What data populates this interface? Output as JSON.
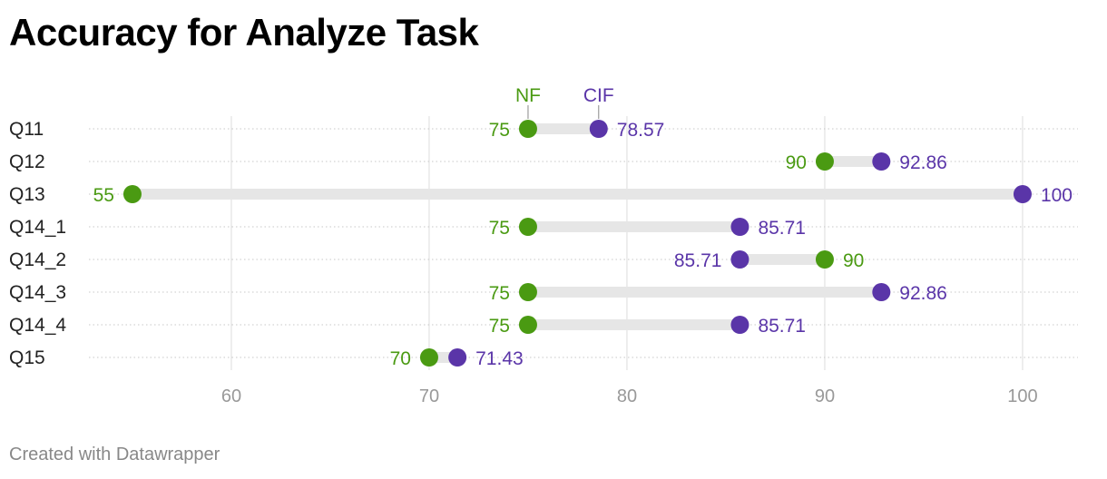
{
  "title": "Accuracy for Analyze Task",
  "credit": "Created with Datawrapper",
  "colors": {
    "NF": "#4a9a12",
    "CIF": "#5a35a8",
    "range_bar": "#e6e6e6",
    "grid": "#dddddd",
    "tick_text": "#999999"
  },
  "chart_data": {
    "type": "dumbbell",
    "title": "Accuracy for Analyze Task",
    "xlim": [
      52.8,
      102.8
    ],
    "x_ticks": [
      60,
      70,
      80,
      90,
      100
    ],
    "categories": [
      "Q11",
      "Q12",
      "Q13",
      "Q14_1",
      "Q14_2",
      "Q14_3",
      "Q14_4",
      "Q15"
    ],
    "series": [
      {
        "name": "NF",
        "values": [
          75,
          90,
          55,
          75,
          90,
          75,
          75,
          70
        ]
      },
      {
        "name": "CIF",
        "values": [
          78.57,
          92.86,
          100,
          85.71,
          85.71,
          92.86,
          85.71,
          71.43
        ]
      }
    ],
    "value_labels": {
      "NF": [
        "75",
        "90",
        "55",
        "75",
        "90",
        "75",
        "75",
        "70"
      ],
      "CIF": [
        "78.57",
        "92.86",
        "100",
        "85.71",
        "85.71",
        "92.86",
        "85.71",
        "71.43"
      ]
    },
    "grid": true,
    "legend": "inline-above-first-row"
  }
}
